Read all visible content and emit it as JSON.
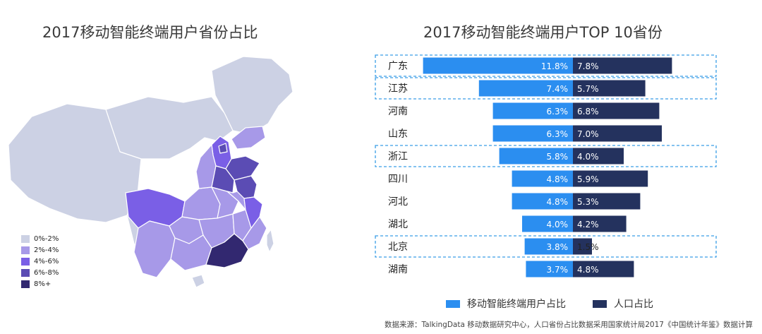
{
  "left_title": "2017移动智能终端用户省份占比",
  "right_title": "2017移动智能终端用户TOP 10省份",
  "colors": {
    "mobile": "#2b8ef0",
    "population": "#24325e",
    "highlight_border": "#3a9ee6",
    "map_levels": [
      "#ccd1e4",
      "#a799e8",
      "#7a5fe6",
      "#5b4cb4",
      "#322870"
    ]
  },
  "map_legend": [
    "0%-2%",
    "2%-4%",
    "4%-6%",
    "6%-8%",
    "8%+"
  ],
  "chart_data": {
    "type": "bar",
    "title": "2017移动智能终端用户TOP 10省份",
    "categories": [
      "广东",
      "江苏",
      "河南",
      "山东",
      "浙江",
      "四川",
      "河北",
      "湖北",
      "北京",
      "湖南"
    ],
    "series": [
      {
        "name": "移动智能终端用户占比",
        "values": [
          11.8,
          7.4,
          6.3,
          6.3,
          5.8,
          4.8,
          4.8,
          4.0,
          3.8,
          3.7
        ],
        "labels": [
          "11.8%",
          "7.4%",
          "6.3%",
          "6.3%",
          "5.8%",
          "4.8%",
          "4.8%",
          "4.0%",
          "3.8%",
          "3.7%"
        ]
      },
      {
        "name": "人口占比",
        "values": [
          7.8,
          5.7,
          6.8,
          7.0,
          4.0,
          5.9,
          5.3,
          4.2,
          1.5,
          4.8
        ],
        "labels": [
          "7.8%",
          "5.7%",
          "6.8%",
          "7.0%",
          "4.0%",
          "5.9%",
          "5.3%",
          "4.2%",
          "1.5%",
          "4.8%"
        ]
      }
    ],
    "highlighted": [
      "广东",
      "江苏",
      "浙江",
      "北京"
    ]
  },
  "source": "数据来源：TalkingData 移动数据研究中心，人口省份占比数据采用国家统计局2017《中国统计年鉴》数据计算"
}
